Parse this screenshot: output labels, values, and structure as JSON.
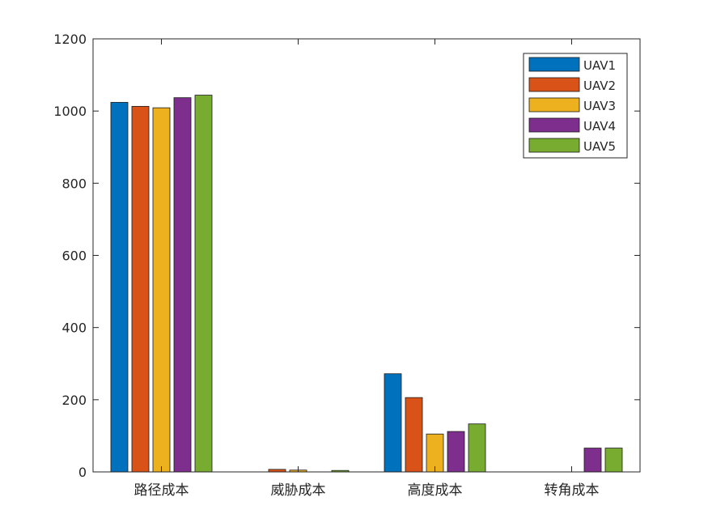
{
  "chart_data": {
    "type": "bar",
    "title": "",
    "xlabel": "",
    "ylabel": "",
    "ylim": [
      0,
      1200
    ],
    "yticks": [
      0,
      200,
      400,
      600,
      800,
      1000,
      1200
    ],
    "ytick_labels": [
      "0",
      "200",
      "400",
      "600",
      "800",
      "1000",
      "1200"
    ],
    "grid": false,
    "legend_position": "top-right",
    "categories": [
      "路径成本",
      "威胁成本",
      "高度成本",
      "转角成本"
    ],
    "series": [
      {
        "name": "UAV1",
        "color": "#0072BD",
        "values": [
          1024,
          0,
          272,
          0
        ]
      },
      {
        "name": "UAV2",
        "color": "#D95319",
        "values": [
          1013,
          7,
          206,
          0
        ]
      },
      {
        "name": "UAV3",
        "color": "#EDB120",
        "values": [
          1009,
          5,
          105,
          0
        ]
      },
      {
        "name": "UAV4",
        "color": "#7E2F8E",
        "values": [
          1037,
          0,
          112,
          66
        ]
      },
      {
        "name": "UAV5",
        "color": "#77AC30",
        "values": [
          1044,
          4,
          133,
          66
        ]
      }
    ]
  }
}
